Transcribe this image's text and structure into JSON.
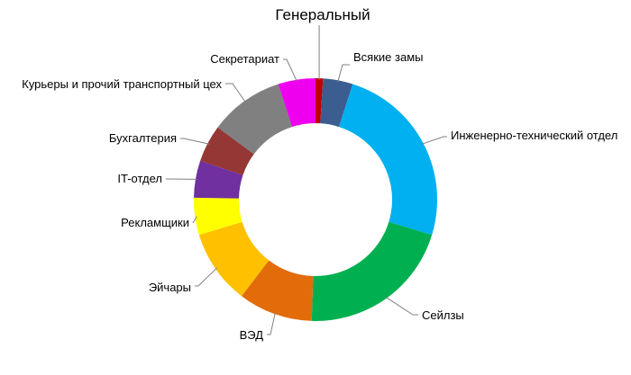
{
  "chart_data": {
    "type": "pie",
    "subtype": "doughnut",
    "title": "",
    "legend": "none",
    "grid": false,
    "series": [
      {
        "values": [
          1,
          4,
          25,
          21,
          10,
          10,
          5,
          5,
          5,
          10,
          5
        ],
        "categories": [
          "Генеральный",
          "Всякие замы",
          "Инженерно-технический отдел",
          "Сейлзы",
          "ВЭД",
          "Эйчары",
          "Рекламщики",
          "IT-отдел",
          "Бухгалтерия",
          "Курьеры и прочий транспортный цех",
          "Секретариат"
        ],
        "colors": [
          "#c00000",
          "#3b5d8f",
          "#00b0f0",
          "#00b050",
          "#e26b0a",
          "#ffc000",
          "#ffff00",
          "#7030a0",
          "#953735",
          "#808080",
          "#ee00ee"
        ]
      }
    ]
  }
}
